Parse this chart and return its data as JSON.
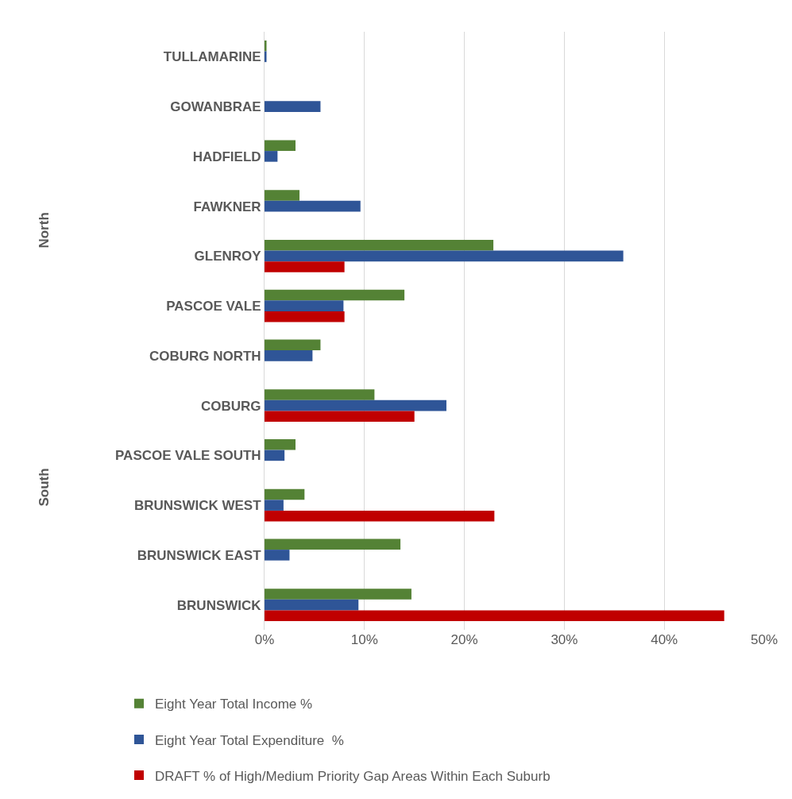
{
  "chart_data": {
    "type": "bar",
    "orientation": "horizontal",
    "categories": [
      "TULLAMARINE",
      "GOWANBRAE",
      "HADFIELD",
      "FAWKNER",
      "GLENROY",
      "PASCOE VALE",
      "COBURG NORTH",
      "COBURG",
      "PASCOE VALE SOUTH",
      "BRUNSWICK WEST",
      "BRUNSWICK EAST",
      "BRUNSWICK"
    ],
    "series": [
      {
        "name": "Eight Year Total Income %",
        "color": "#548235",
        "values": [
          0.2,
          null,
          3.1,
          3.5,
          22.9,
          14.0,
          5.6,
          11.0,
          3.1,
          4.0,
          13.6,
          14.7
        ]
      },
      {
        "name": "Eight Year Total Expenditure  %",
        "color": "#2f5597",
        "values": [
          0.2,
          5.6,
          1.3,
          9.6,
          35.9,
          7.9,
          4.8,
          18.2,
          2.0,
          1.9,
          2.5,
          9.4
        ]
      },
      {
        "name": "DRAFT % of High/Medium Priority Gap Areas Within Each Suburb",
        "color": "#c00000",
        "values": [
          null,
          null,
          null,
          null,
          8.0,
          8.0,
          null,
          15.0,
          null,
          23.0,
          null,
          46.0
        ]
      }
    ],
    "xlim": [
      0,
      50
    ],
    "xticks": [
      {
        "value": 0,
        "label": "0%"
      },
      {
        "value": 10,
        "label": "10%"
      },
      {
        "value": 20,
        "label": "20%"
      },
      {
        "value": 30,
        "label": "30%"
      },
      {
        "value": 40,
        "label": "40%"
      },
      {
        "value": 50,
        "label": "50%"
      }
    ],
    "annotations": [
      "North",
      "South"
    ],
    "grid": "x",
    "legend": "bottom"
  }
}
